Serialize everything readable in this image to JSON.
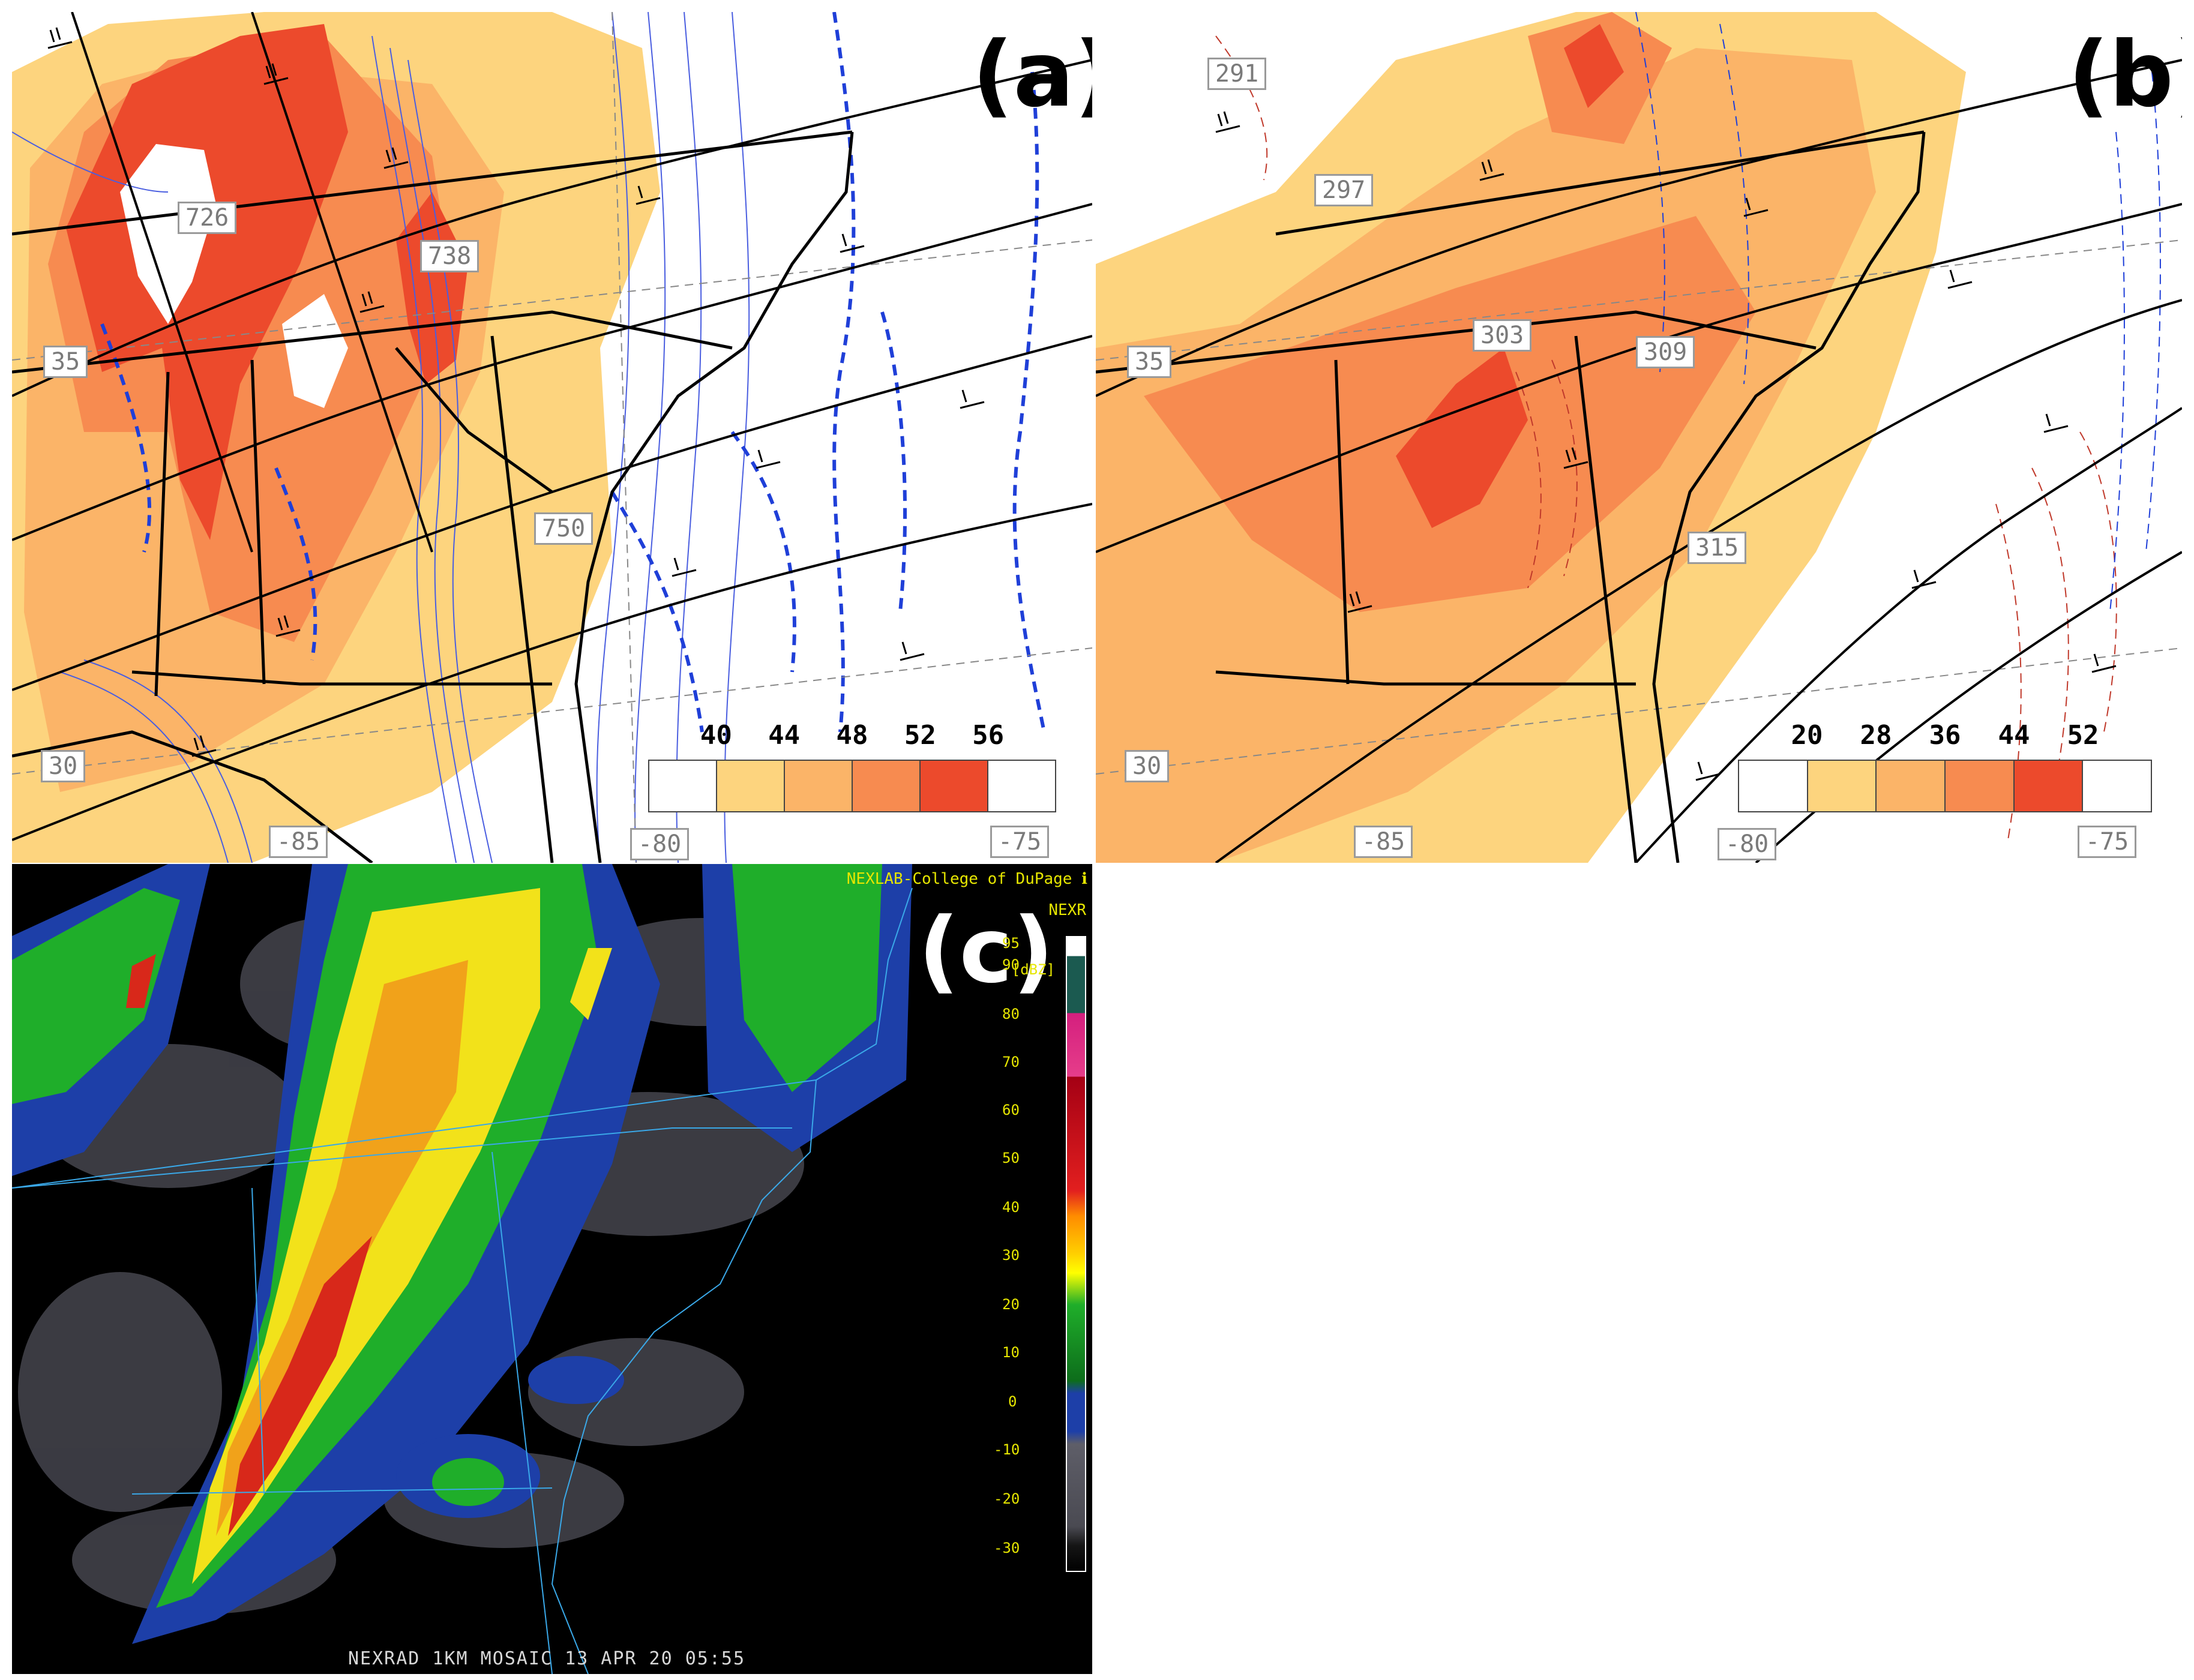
{
  "panels": {
    "a": {
      "letter": "(a)",
      "contour_labels": [
        "726",
        "738",
        "750"
      ],
      "lat_labels": [
        "35",
        "30"
      ],
      "lon_labels": [
        "-85",
        "-80",
        "-75"
      ],
      "colorbar": {
        "ticks": [
          "40",
          "44",
          "48",
          "52",
          "56"
        ],
        "colors": [
          "#ffffff",
          "#fdd47e",
          "#fbb468",
          "#f78b50",
          "#ec4a2c",
          "#ffffff"
        ]
      }
    },
    "b": {
      "letter": "(b)",
      "contour_labels": [
        "291",
        "297",
        "303",
        "309",
        "315"
      ],
      "lat_labels": [
        "35",
        "30"
      ],
      "lon_labels": [
        "-85",
        "-80",
        "-75"
      ],
      "colorbar": {
        "ticks": [
          "20",
          "28",
          "36",
          "44",
          "52"
        ],
        "colors": [
          "#ffffff",
          "#fdd47e",
          "#fbb468",
          "#f78b50",
          "#ec4a2c",
          "#ffffff"
        ]
      }
    },
    "c": {
      "letter": "(c)",
      "credit": "NEXLAB-College of DuPage ℹ",
      "product_tag": "NEXR",
      "unit": "[dBZ]",
      "dbz_labels": [
        "95",
        "90",
        "80",
        "70",
        "60",
        "50",
        "40",
        "30",
        "20",
        "10",
        "0",
        "-10",
        "-20",
        "-30"
      ],
      "footer": "NEXRAD 1KM MOSAIC 13 APR 20  05:55"
    }
  },
  "colors": {
    "shade1": "#fdd47e",
    "shade2": "#fbb468",
    "shade3": "#f78b50",
    "shade4": "#ec4a2c",
    "contour_blue": "#1f3fd8",
    "contour_red": "#c0392b",
    "radar_bg": "#000000"
  }
}
